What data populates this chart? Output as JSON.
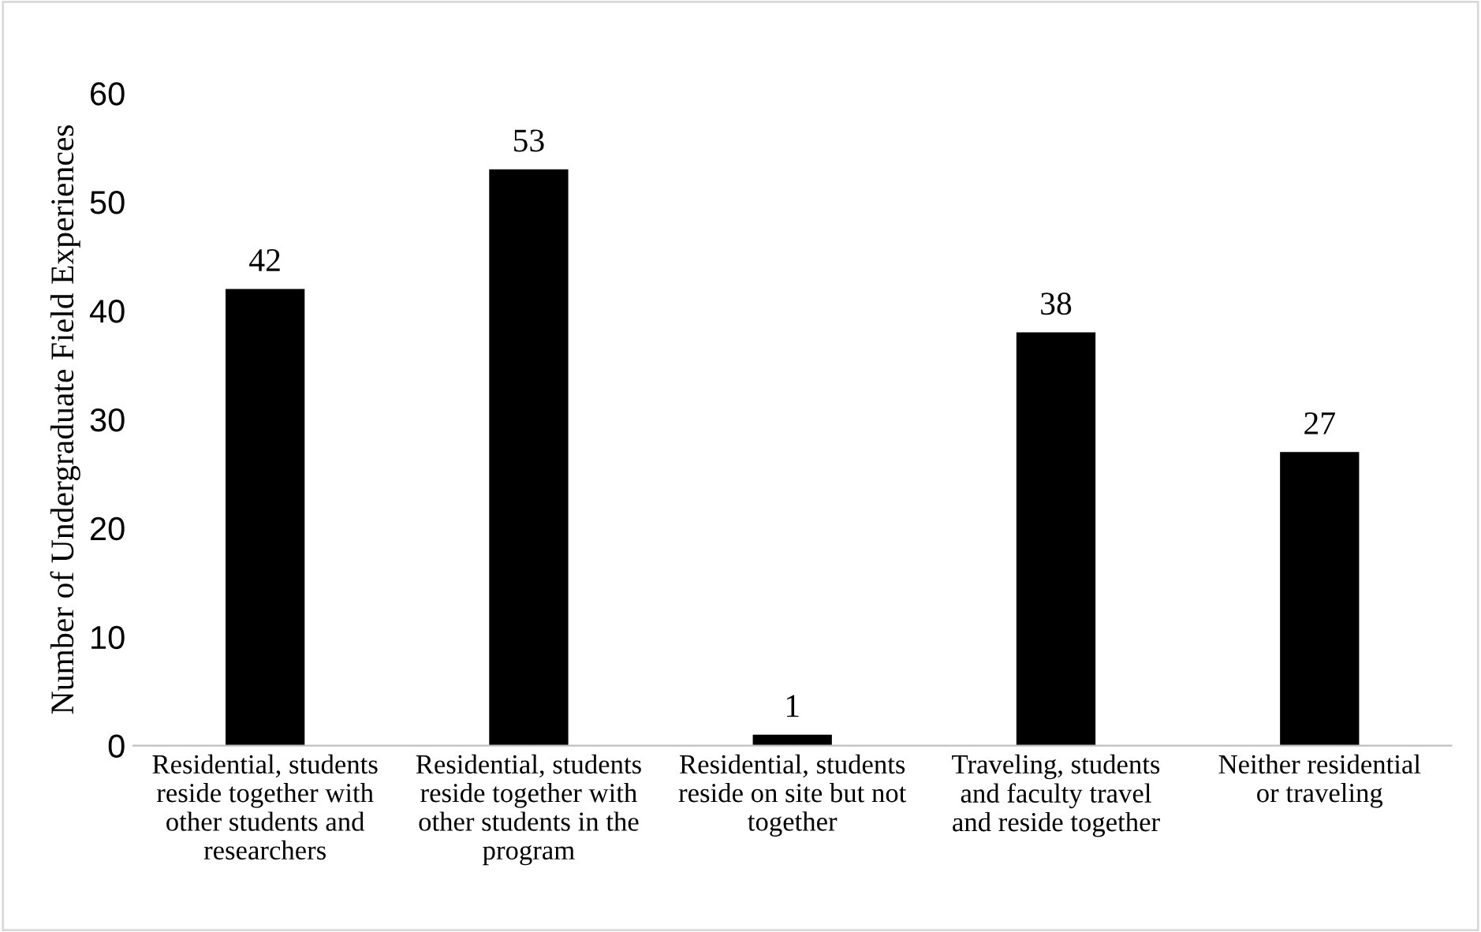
{
  "chart_data": {
    "type": "bar",
    "ylabel": "Number of Undergraduate Field Experiences",
    "categories": [
      "Residential, students\nreside together with\nother students and\nresearchers",
      "Residential, students\nreside together with\nother students in the\nprogram",
      "Residential, students\nreside on site but not\ntogether",
      "Traveling, students\nand faculty travel\nand reside together",
      "Neither residential\nor traveling"
    ],
    "values": [
      42,
      53,
      1,
      38,
      27
    ],
    "color": "#000000",
    "ylim": [
      0,
      60
    ],
    "yticks": [
      0,
      10,
      20,
      30,
      40,
      50,
      60
    ],
    "data_labels": true,
    "grid": false
  }
}
